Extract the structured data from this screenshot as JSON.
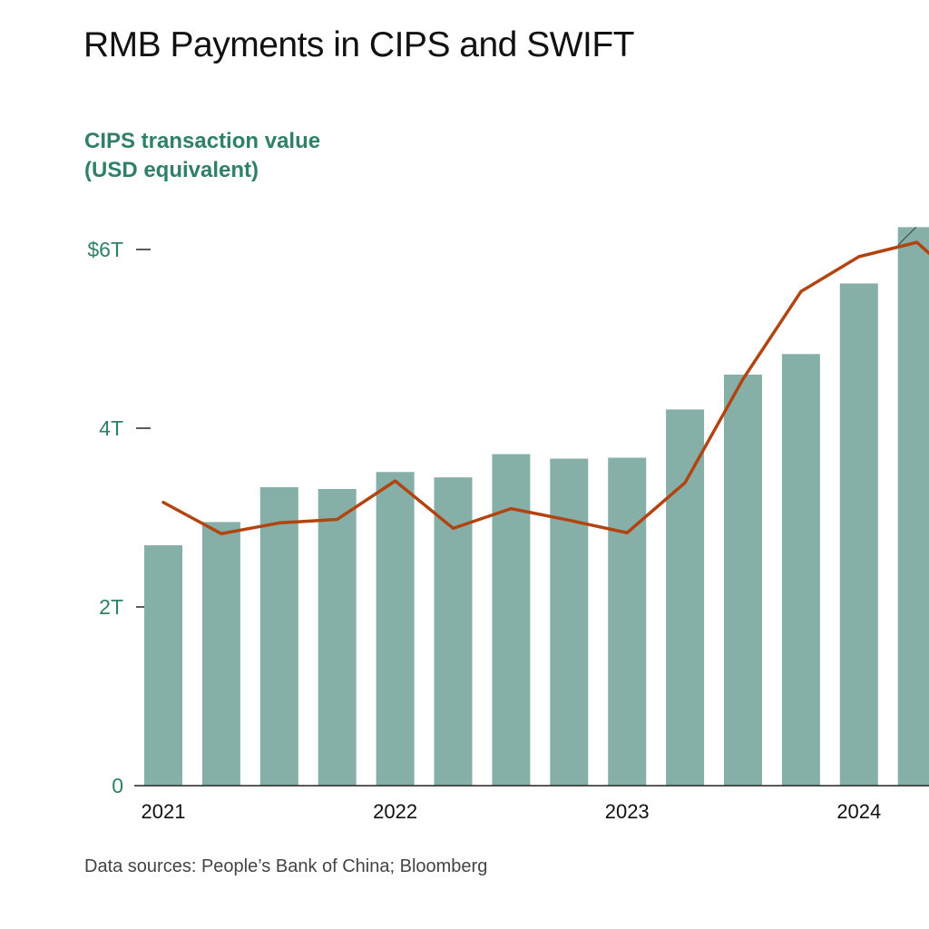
{
  "header": {
    "title": "RMB Payments in CIPS and SWIFT"
  },
  "footer": {
    "source": "Data sources: People’s Bank of China; Bloomberg"
  },
  "colors": {
    "bar": "#86b0a7",
    "line": "#b24411",
    "axis_label": "#2e8068",
    "axis": "#222222"
  },
  "chart_data": {
    "type": "bar",
    "title": "RMB Payments in CIPS and SWIFT",
    "ylabel_lines": [
      "CIPS transaction value",
      "(USD equivalent)"
    ],
    "ylim": [
      0,
      6.2
    ],
    "yticks": [
      {
        "value": 0,
        "label": "0"
      },
      {
        "value": 2,
        "label": "2T"
      },
      {
        "value": 4,
        "label": "4T"
      },
      {
        "value": 6,
        "label": "$6T"
      }
    ],
    "xtick_labels": [
      {
        "index": 0,
        "label": "2021"
      },
      {
        "index": 4,
        "label": "2022"
      },
      {
        "index": 8,
        "label": "2023"
      },
      {
        "index": 12,
        "label": "2024"
      }
    ],
    "series": [
      {
        "type": "bar",
        "values": [
          2.69,
          2.95,
          3.34,
          3.32,
          3.51,
          3.45,
          3.71,
          3.66,
          3.67,
          4.21,
          4.6,
          4.83,
          5.62,
          6.25
        ]
      },
      {
        "type": "line",
        "values": [
          3.17,
          2.82,
          2.94,
          2.98,
          3.41,
          2.88,
          3.1,
          2.97,
          2.83,
          3.39,
          4.55,
          5.53,
          5.92,
          6.08
        ]
      }
    ]
  }
}
